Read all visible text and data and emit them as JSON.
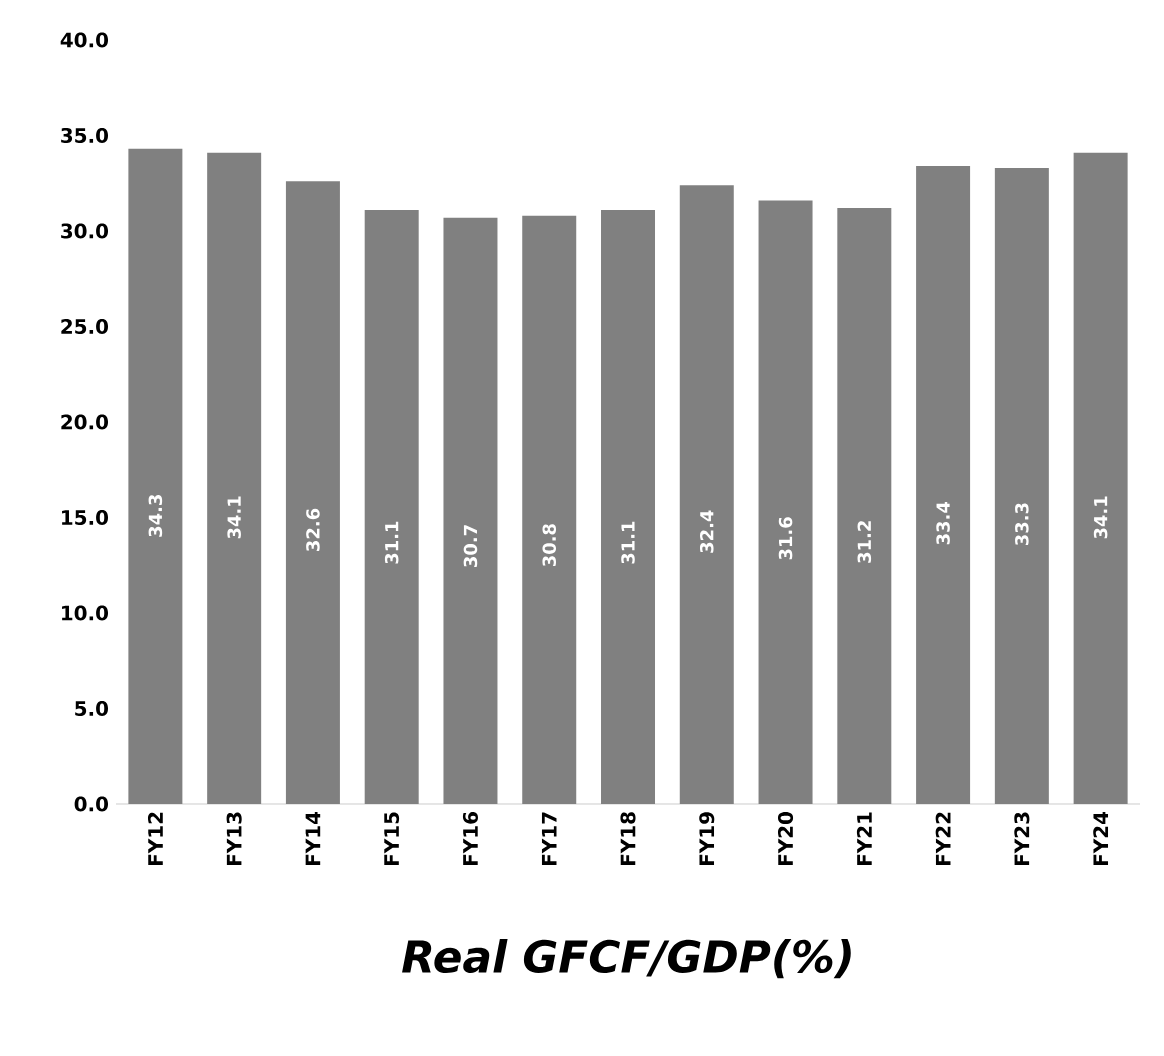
{
  "chart_data": {
    "type": "bar",
    "title": "*Real GFCF/GDP(%)*",
    "categories": [
      "FY12",
      "FY13",
      "FY14",
      "FY15",
      "FY16",
      "FY17",
      "FY18",
      "FY19",
      "FY20",
      "FY21",
      "FY22",
      "FY23",
      "FY24"
    ],
    "values": [
      34.3,
      34.1,
      32.6,
      31.1,
      30.7,
      30.8,
      31.1,
      32.4,
      31.6,
      31.2,
      33.4,
      33.3,
      34.1
    ],
    "color": "#808080",
    "data_labels": true,
    "ylim": [
      0,
      40
    ],
    "yticks": [
      {
        "value": 0,
        "label": "0.0"
      },
      {
        "value": 5,
        "label": "5.0"
      },
      {
        "value": 10,
        "label": "10.0"
      },
      {
        "value": 15,
        "label": "15.0"
      },
      {
        "value": 20,
        "label": "20.0"
      },
      {
        "value": 25,
        "label": "25.0"
      },
      {
        "value": 30,
        "label": "30.0"
      },
      {
        "value": 35,
        "label": "35.0"
      },
      {
        "value": 40,
        "label": "40.0"
      }
    ]
  }
}
